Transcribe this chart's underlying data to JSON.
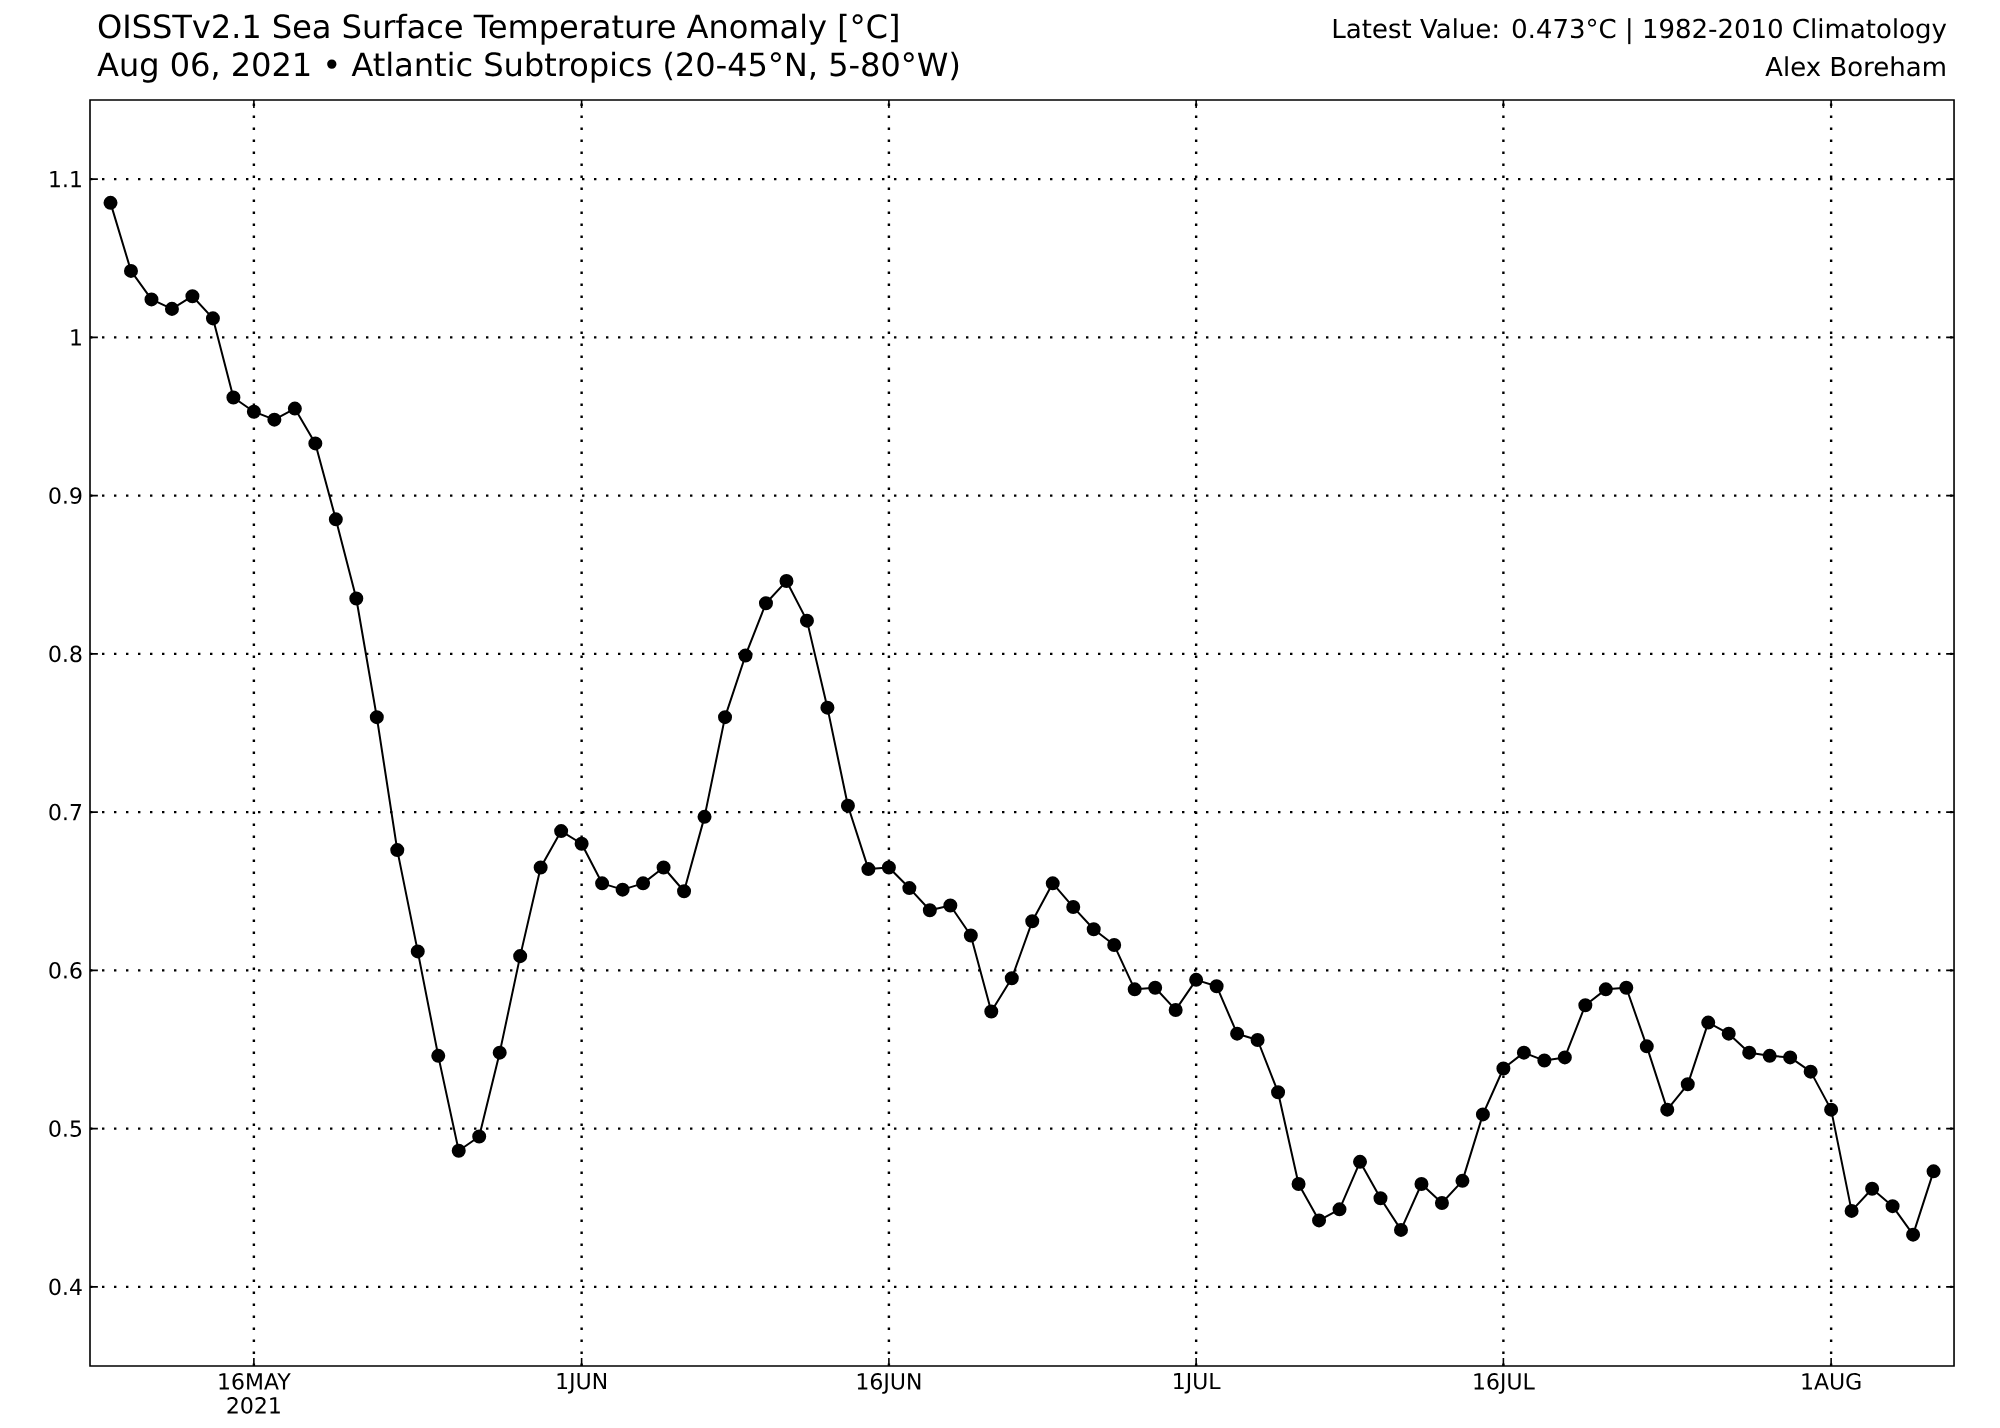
{
  "chart_data": {
    "type": "line",
    "title": "OISSTv2.1 Sea Surface Temperature Anomaly [°C]",
    "subtitle": "Aug 06, 2021 • Atlantic Subtropics (20-45°N, 5-80°W)",
    "annotations": [
      "Latest Value: 0.473°C | 1982-2010 Climatology",
      "Alex Boreham"
    ],
    "x": [
      "2021-05-09",
      "2021-05-10",
      "2021-05-11",
      "2021-05-12",
      "2021-05-13",
      "2021-05-14",
      "2021-05-15",
      "2021-05-16",
      "2021-05-17",
      "2021-05-18",
      "2021-05-19",
      "2021-05-20",
      "2021-05-21",
      "2021-05-22",
      "2021-05-23",
      "2021-05-24",
      "2021-05-25",
      "2021-05-26",
      "2021-05-27",
      "2021-05-28",
      "2021-05-29",
      "2021-05-30",
      "2021-05-31",
      "2021-06-01",
      "2021-06-02",
      "2021-06-03",
      "2021-06-04",
      "2021-06-05",
      "2021-06-06",
      "2021-06-07",
      "2021-06-08",
      "2021-06-09",
      "2021-06-10",
      "2021-06-11",
      "2021-06-12",
      "2021-06-13",
      "2021-06-14",
      "2021-06-15",
      "2021-06-16",
      "2021-06-17",
      "2021-06-18",
      "2021-06-19",
      "2021-06-20",
      "2021-06-21",
      "2021-06-22",
      "2021-06-23",
      "2021-06-24",
      "2021-06-25",
      "2021-06-26",
      "2021-06-27",
      "2021-06-28",
      "2021-06-29",
      "2021-06-30",
      "2021-07-01",
      "2021-07-02",
      "2021-07-03",
      "2021-07-04",
      "2021-07-05",
      "2021-07-06",
      "2021-07-07",
      "2021-07-08",
      "2021-07-09",
      "2021-07-10",
      "2021-07-11",
      "2021-07-12",
      "2021-07-13",
      "2021-07-14",
      "2021-07-15",
      "2021-07-16",
      "2021-07-17",
      "2021-07-18",
      "2021-07-19",
      "2021-07-20",
      "2021-07-21",
      "2021-07-22",
      "2021-07-23",
      "2021-07-24",
      "2021-07-25",
      "2021-07-26",
      "2021-07-27",
      "2021-07-28",
      "2021-07-29",
      "2021-07-30",
      "2021-07-31",
      "2021-08-01",
      "2021-08-02",
      "2021-08-03",
      "2021-08-04",
      "2021-08-05",
      "2021-08-06"
    ],
    "series": [
      {
        "color": "#000000",
        "values": [
          1.085,
          1.042,
          1.024,
          1.018,
          1.026,
          1.012,
          0.962,
          0.953,
          0.948,
          0.955,
          0.933,
          0.885,
          0.835,
          0.76,
          0.676,
          0.612,
          0.546,
          0.486,
          0.495,
          0.548,
          0.609,
          0.665,
          0.688,
          0.68,
          0.655,
          0.651,
          0.655,
          0.665,
          0.65,
          0.697,
          0.76,
          0.799,
          0.832,
          0.846,
          0.821,
          0.766,
          0.704,
          0.664,
          0.665,
          0.652,
          0.638,
          0.641,
          0.622,
          0.574,
          0.595,
          0.631,
          0.655,
          0.64,
          0.626,
          0.616,
          0.588,
          0.589,
          0.575,
          0.594,
          0.59,
          0.56,
          0.556,
          0.523,
          0.465,
          0.442,
          0.449,
          0.479,
          0.456,
          0.436,
          0.465,
          0.453,
          0.467,
          0.509,
          0.538,
          0.548,
          0.543,
          0.545,
          0.578,
          0.588,
          0.589,
          0.552,
          0.512,
          0.528,
          0.567,
          0.56,
          0.548,
          0.546,
          0.545,
          0.536,
          0.512,
          0.448,
          0.462,
          0.451,
          0.433,
          0.473
        ]
      }
    ],
    "xlim": [
      "2021-05-08",
      "2021-08-07"
    ],
    "xticks": [
      {
        "value": "2021-05-16",
        "label": "16MAY 2021"
      },
      {
        "value": "2021-06-01",
        "label": "1JUN"
      },
      {
        "value": "2021-06-16",
        "label": "16JUN"
      },
      {
        "value": "2021-07-01",
        "label": "1JUL"
      },
      {
        "value": "2021-07-16",
        "label": "16JUL"
      },
      {
        "value": "2021-08-01",
        "label": "1AUG"
      }
    ],
    "ylim": [
      0.35,
      1.15
    ],
    "yticks": [
      0.4,
      0.5,
      0.6,
      0.7,
      0.8,
      0.9,
      1,
      1.1
    ],
    "grid": true,
    "marker": "circle",
    "line_style": "solid"
  }
}
